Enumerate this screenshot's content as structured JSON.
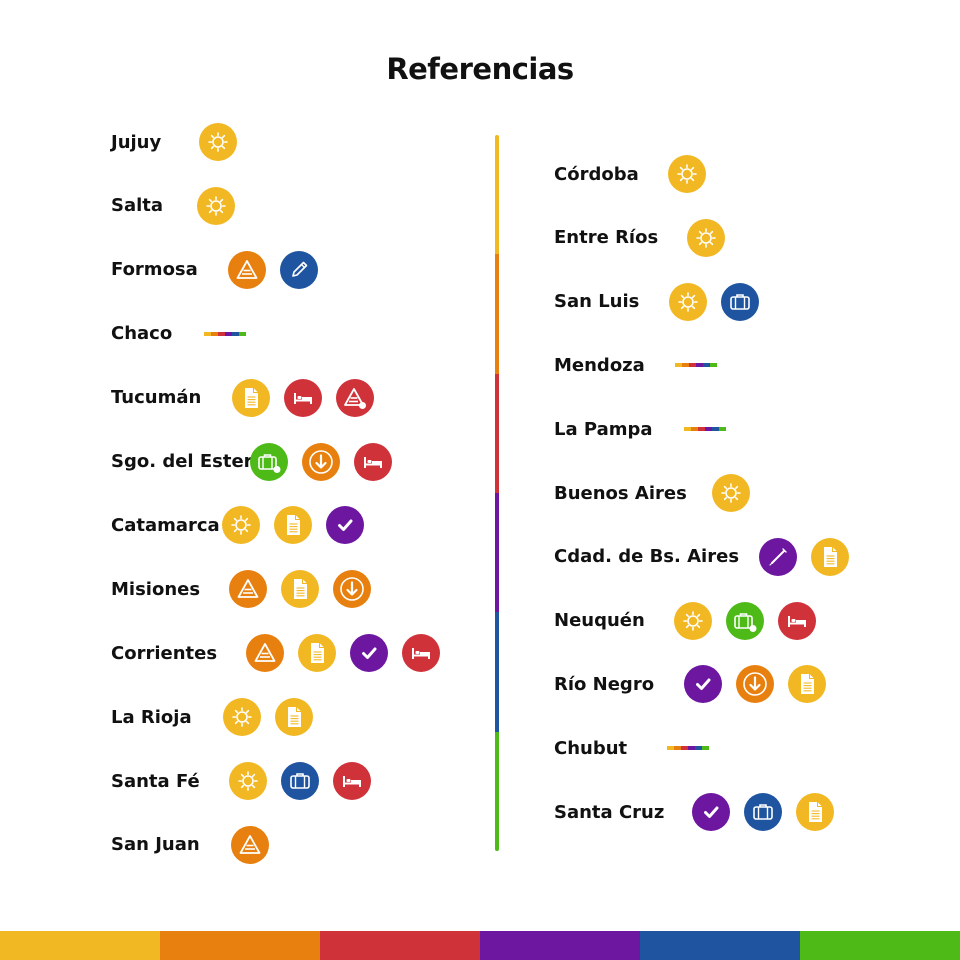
{
  "title": "Referencias",
  "colors": {
    "yellow": "#F2B824",
    "orange": "#E8800F",
    "red": "#D0323A",
    "purple": "#6D16A0",
    "blue": "#1F55A0",
    "green": "#4DBA18"
  },
  "left_column": [
    {
      "name": "Jujuy",
      "icons": [
        "sun-icon"
      ]
    },
    {
      "name": "Salta",
      "icons": [
        "sun-icon"
      ]
    },
    {
      "name": "Formosa",
      "icons": [
        "warning-icon",
        "pencil-icon"
      ]
    },
    {
      "name": "Chaco",
      "icons": [
        "rainbow-strip"
      ]
    },
    {
      "name": "Tucumán",
      "icons": [
        "document-icon",
        "bed-icon",
        "warning-alert-icon"
      ]
    },
    {
      "name": "Sgo. del Estero",
      "icons": [
        "luggage-alert-icon",
        "arrow-down-icon",
        "bed-icon"
      ]
    },
    {
      "name": "Catamarca",
      "icons": [
        "sun-icon",
        "document-icon",
        "check-icon"
      ]
    },
    {
      "name": "Misiones",
      "icons": [
        "warning-icon",
        "document-icon",
        "arrow-down-icon"
      ]
    },
    {
      "name": "Corrientes",
      "icons": [
        "warning-icon",
        "document-icon",
        "check-icon",
        "bed-icon"
      ]
    },
    {
      "name": "La Rioja",
      "icons": [
        "sun-icon",
        "document-icon"
      ]
    },
    {
      "name": "Santa Fé",
      "icons": [
        "sun-icon",
        "luggage-icon",
        "bed-icon"
      ]
    },
    {
      "name": "San Juan",
      "icons": [
        "warning-icon"
      ]
    }
  ],
  "right_column": [
    {
      "name": "Córdoba",
      "icons": [
        "sun-icon"
      ]
    },
    {
      "name": "Entre Ríos",
      "icons": [
        "sun-icon"
      ]
    },
    {
      "name": "San Luis",
      "icons": [
        "sun-icon",
        "luggage-icon"
      ]
    },
    {
      "name": "Mendoza",
      "icons": [
        "rainbow-strip"
      ]
    },
    {
      "name": "La Pampa",
      "icons": [
        "rainbow-strip"
      ]
    },
    {
      "name": "Buenos Aires",
      "icons": [
        "sun-icon"
      ]
    },
    {
      "name": "Cdad. de Bs. Aires",
      "icons": [
        "syringe-icon",
        "document-icon"
      ]
    },
    {
      "name": "Neuquén",
      "icons": [
        "sun-icon",
        "luggage-alert-icon",
        "bed-icon"
      ]
    },
    {
      "name": "Río Negro",
      "icons": [
        "check-icon",
        "arrow-down-icon",
        "document-icon"
      ]
    },
    {
      "name": "Chubut",
      "icons": [
        "rainbow-strip"
      ]
    },
    {
      "name": "Santa Cruz",
      "icons": [
        "check-icon",
        "luggage-icon",
        "document-icon"
      ]
    }
  ]
}
